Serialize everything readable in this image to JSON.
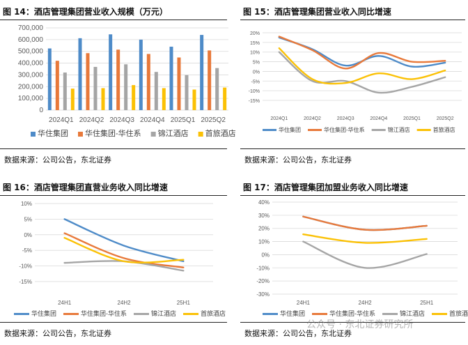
{
  "panels": [
    {
      "title": "图  14：酒店管理集团营业收入规模（万元）",
      "source": "数据来源：公司公告，东北证券"
    },
    {
      "title": "图  15：酒店管理集团营业收入同比增速",
      "source": "数据来源：公司公告，东北证券"
    },
    {
      "title": "图  16：酒店管理集团直营业务收入同比增速",
      "source": "数据来源：公司公告，东北证券"
    },
    {
      "title": "图  17：酒店管理集团加盟业务收入同比增速",
      "source": "数据来源：公司公告，东北证券"
    }
  ],
  "watermark": "公众号 · 东北证券研究所",
  "chart_data": [
    {
      "type": "bar",
      "title": "酒店管理集团营业收入规模（万元）",
      "categories": [
        "2024Q1",
        "2024Q2",
        "2024Q3",
        "2024Q4",
        "2025Q1",
        "2025Q2"
      ],
      "ylim": [
        0,
        700000
      ],
      "yticks": [
        0,
        100000,
        200000,
        300000,
        400000,
        500000,
        600000,
        700000
      ],
      "ytick_labels": [
        "0",
        "100,000",
        "200,000",
        "300,000",
        "400,000",
        "500,000",
        "600,000",
        "700,000"
      ],
      "grid": true,
      "legend": "bottom",
      "series": [
        {
          "name": "华住集团",
          "color": "#4e8bc8",
          "values": [
            525000,
            612000,
            645000,
            600000,
            540000,
            640000
          ]
        },
        {
          "name": "华住集团-华住系",
          "color": "#e8793a",
          "values": [
            420000,
            485000,
            515000,
            478000,
            448000,
            508000
          ]
        },
        {
          "name": "锦江酒店",
          "color": "#a5a5a5",
          "values": [
            320000,
            368000,
            390000,
            325000,
            298000,
            358000
          ]
        },
        {
          "name": "首旅酒店",
          "color": "#fbc105",
          "values": [
            183000,
            187000,
            213000,
            187000,
            175000,
            192000
          ]
        }
      ]
    },
    {
      "type": "line",
      "title": "酒店管理集团营业收入同比增速",
      "categories": [
        "2024Q1",
        "2024Q2",
        "2024Q3",
        "2024Q4",
        "2025Q1",
        "2025Q2"
      ],
      "ylim": [
        -15,
        20
      ],
      "yticks": [
        -15,
        -10,
        -5,
        0,
        5,
        10,
        15,
        20
      ],
      "ytick_labels": [
        "-15%",
        "-10%",
        "-5%",
        "0%",
        "5%",
        "10%",
        "15%",
        "20%"
      ],
      "grid": true,
      "legend": "bottom",
      "series": [
        {
          "name": "华住集团",
          "color": "#4e8bc8",
          "values": [
            17.5,
            11.5,
            3,
            8,
            2.5,
            4.5
          ]
        },
        {
          "name": "华住集团-华住系",
          "color": "#e8793a",
          "values": [
            18,
            11,
            1.5,
            9.5,
            5,
            5.5
          ]
        },
        {
          "name": "锦江酒店",
          "color": "#a5a5a5",
          "values": [
            10,
            -5,
            -5,
            -11,
            -8,
            -3
          ]
        },
        {
          "name": "首旅酒店",
          "color": "#fbc105",
          "values": [
            12,
            -4,
            -6,
            -1,
            -4,
            0.5
          ]
        }
      ]
    },
    {
      "type": "line",
      "title": "酒店管理集团直营业务收入同比增速",
      "categories": [
        "24H1",
        "24H2",
        "25H1"
      ],
      "ylim": [
        -15,
        10
      ],
      "yticks": [
        -15,
        -10,
        -5,
        0,
        5,
        10
      ],
      "ytick_labels": [
        "-15%",
        "-10%",
        "-5%",
        "0%",
        "5%",
        "10%"
      ],
      "grid": true,
      "legend": "bottom",
      "series": [
        {
          "name": "华住集团",
          "color": "#4e8bc8",
          "values": [
            5,
            -3.5,
            -8.5
          ]
        },
        {
          "name": "华住集团-华住系",
          "color": "#e8793a",
          "values": [
            0.5,
            -7.5,
            -10.5
          ]
        },
        {
          "name": "锦江酒店",
          "color": "#a5a5a5",
          "values": [
            -9,
            -8.5,
            -11.5
          ]
        },
        {
          "name": "首旅酒店",
          "color": "#fbc105",
          "values": [
            -1,
            -8.5,
            -8
          ]
        }
      ]
    },
    {
      "type": "line",
      "title": "酒店管理集团加盟业务收入同比增速",
      "categories": [
        "24H1",
        "24H2",
        "25H1"
      ],
      "ylim": [
        -30,
        40
      ],
      "yticks": [
        -30,
        -20,
        -10,
        0,
        10,
        20,
        30,
        40
      ],
      "ytick_labels": [
        "-30%",
        "-20%",
        "-10%",
        "0%",
        "10%",
        "20%",
        "30%",
        "40%"
      ],
      "grid": true,
      "legend": "bottom",
      "series": [
        {
          "name": "华住集团",
          "color": "#4e8bc8",
          "values": [
            29,
            19,
            22
          ]
        },
        {
          "name": "华住集团-华住系",
          "color": "#e8793a",
          "values": [
            29,
            19,
            22
          ]
        },
        {
          "name": "锦江酒店",
          "color": "#a5a5a5",
          "values": [
            10,
            -10,
            0.5
          ]
        },
        {
          "name": "首旅酒店",
          "color": "#fbc105",
          "values": [
            15.5,
            9,
            12
          ]
        }
      ]
    }
  ]
}
